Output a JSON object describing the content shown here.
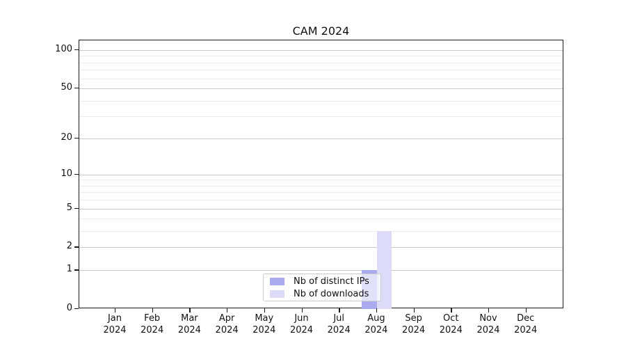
{
  "chart_data": {
    "type": "bar",
    "title": "CAM 2024",
    "categories": [
      {
        "month": "Jan",
        "year": "2024"
      },
      {
        "month": "Feb",
        "year": "2024"
      },
      {
        "month": "Mar",
        "year": "2024"
      },
      {
        "month": "Apr",
        "year": "2024"
      },
      {
        "month": "May",
        "year": "2024"
      },
      {
        "month": "Jun",
        "year": "2024"
      },
      {
        "month": "Jul",
        "year": "2024"
      },
      {
        "month": "Aug",
        "year": "2024"
      },
      {
        "month": "Sep",
        "year": "2024"
      },
      {
        "month": "Oct",
        "year": "2024"
      },
      {
        "month": "Nov",
        "year": "2024"
      },
      {
        "month": "Dec",
        "year": "2024"
      }
    ],
    "series": [
      {
        "name": "Nb of distinct IPs",
        "color": "#a9abee",
        "values": [
          0,
          0,
          0,
          0,
          0,
          0,
          0,
          1,
          0,
          0,
          0,
          0
        ]
      },
      {
        "name": "Nb of downloads",
        "color": "#dcdcf8",
        "values": [
          0,
          0,
          0,
          0,
          0,
          0,
          0,
          3,
          0,
          0,
          0,
          0
        ]
      }
    ],
    "yticks": [
      0,
      1,
      2,
      5,
      10,
      20,
      50,
      100
    ],
    "minor_yticks": [
      3,
      4,
      6,
      7,
      8,
      9,
      30,
      40,
      60,
      70,
      80,
      90
    ],
    "scale": "log10(value+1)",
    "ylim": [
      0,
      119
    ],
    "grid": "horizontal, major and minor",
    "legend_position": "bottom-center",
    "colors": {
      "grid_major": "#cbcbcb",
      "grid_minor": "#ececec",
      "spine": "#1c1c1c",
      "legend_border": "#cccccc"
    }
  }
}
